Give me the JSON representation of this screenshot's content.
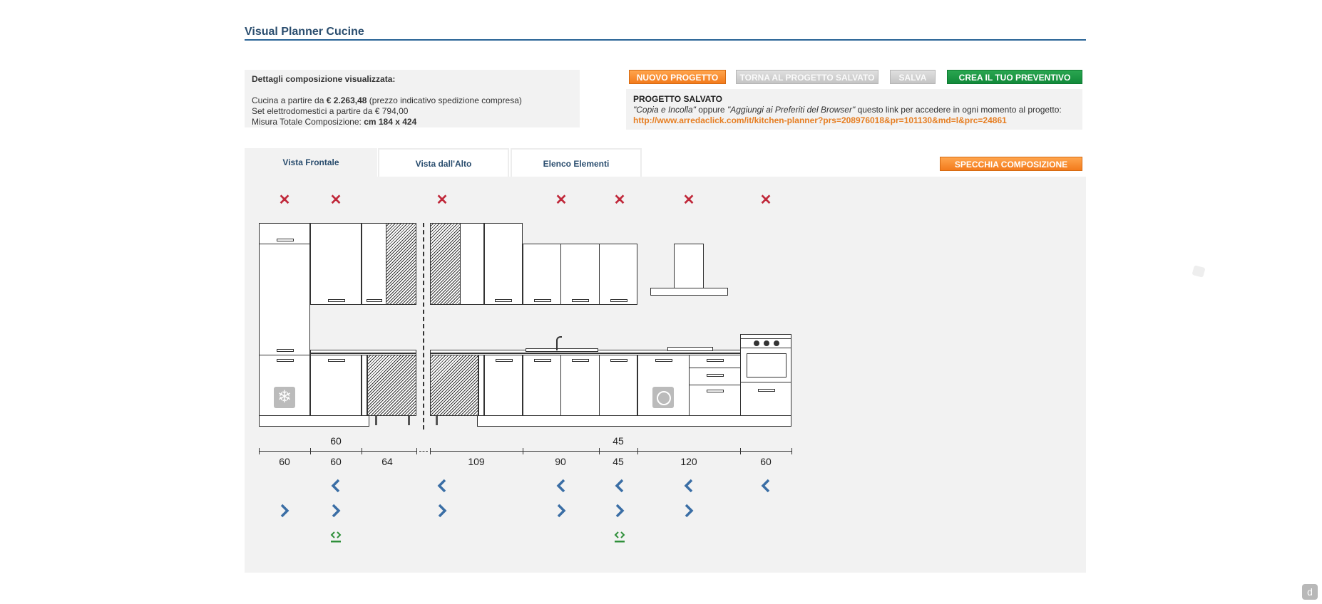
{
  "header": {
    "title": "Visual Planner Cucine"
  },
  "details": {
    "heading": "Dettagli composizione visualizzata:",
    "line1_prefix": "Cucina a partire da ",
    "line1_price": "€ 2.263,48",
    "line1_suffix": " (prezzo indicativo spedizione compresa)",
    "line2": "Set elettrodomestici a partire da € 794,00",
    "line3_prefix": "Misura Totale Composizione: ",
    "line3_value": "cm 184 x 424"
  },
  "toolbar": {
    "new_project": "NUOVO PROGETTO",
    "back_to_saved": "TORNA AL PROGETTO SALVATO",
    "save": "SALVA",
    "create_quote": "CREA IL TUO PREVENTIVO"
  },
  "saved_project": {
    "heading": "PROGETTO SALVATO",
    "copy_paste": "\"Copia e Incolla\"",
    "or": " oppure ",
    "add_fav": "\"Aggiungi ai Preferiti del Browser\"",
    "rest": " questo link per accedere in ogni momento al progetto:",
    "link": "http://www.arredaclick.com/it/kitchen-planner?prs=208976018&pr=101130&md=l&prc=24861"
  },
  "tabs": [
    {
      "label": "Vista Frontale",
      "active": true
    },
    {
      "label": "Vista dall'Alto",
      "active": false
    },
    {
      "label": "Elenco Elementi",
      "active": false
    }
  ],
  "mirror_button": "SPECCHIA COMPOSIZIONE",
  "dimensions": {
    "top_labels": [
      "60",
      "45"
    ],
    "bottom_labels": [
      "60",
      "60",
      "64",
      "109",
      "90",
      "45",
      "120",
      "60"
    ]
  },
  "icons": {
    "remove": "close-icon",
    "left": "chevron-left-icon",
    "right": "chevron-right-icon",
    "swap": "swap-icon",
    "fridge": "snowflake-icon",
    "dishwasher": "dishwasher-icon"
  },
  "colors": {
    "accent_orange": "#f37b1c",
    "accent_green": "#128a3a",
    "title_blue": "#2a4d6e",
    "remove_red": "#c0283a",
    "chevron_blue": "#3a6ea5"
  }
}
